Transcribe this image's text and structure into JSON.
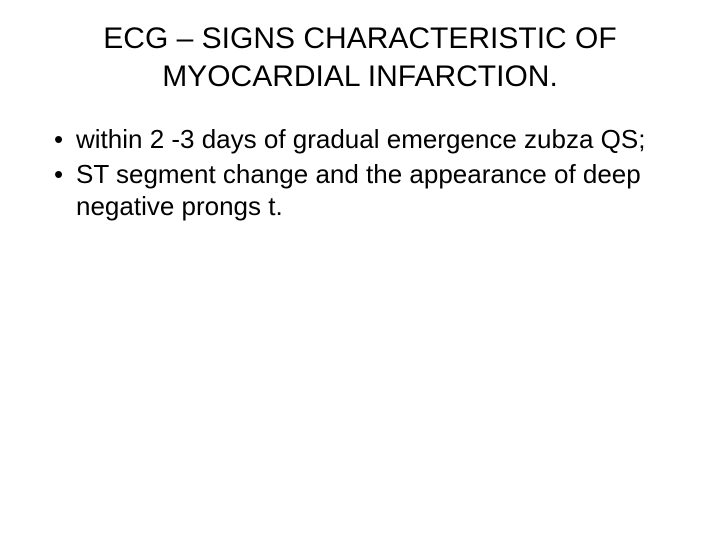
{
  "slide": {
    "title": "ECG – SIGNS CHARACTERISTIC OF MYOCARDIAL INFARCTION.",
    "bullets": [
      {
        "text": "within 2 -3 days of gradual emergence zubza QS;"
      },
      {
        "text": "ST segment change and the appearance of deep negative prongs t."
      }
    ],
    "title_fontsize": 30,
    "bullet_fontsize": 26,
    "text_color": "#000000",
    "background_color": "#ffffff",
    "bullet_marker": "•"
  }
}
